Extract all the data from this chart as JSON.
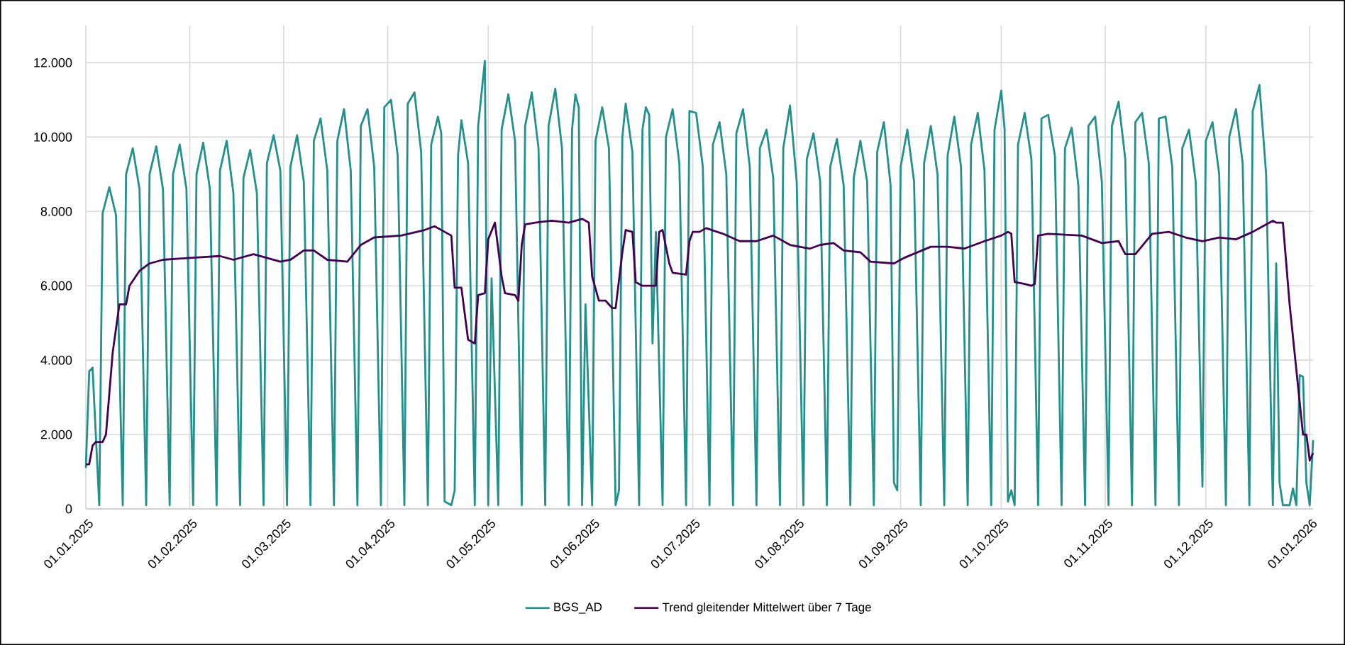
{
  "chart_data": {
    "type": "line",
    "xlim": [
      "2025-01-01",
      "2026-01-02"
    ],
    "xticks": [
      {
        "value": "2025-01-01",
        "label": "01.01.2025"
      },
      {
        "value": "2025-02-01",
        "label": "01.02.2025"
      },
      {
        "value": "2025-03-01",
        "label": "01.03.2025"
      },
      {
        "value": "2025-04-01",
        "label": "01.04.2025"
      },
      {
        "value": "2025-05-01",
        "label": "01.05.2025"
      },
      {
        "value": "2025-06-01",
        "label": "01.06.2025"
      },
      {
        "value": "2025-07-01",
        "label": "01.07.2025"
      },
      {
        "value": "2025-08-01",
        "label": "01.08.2025"
      },
      {
        "value": "2025-09-01",
        "label": "01.09.2025"
      },
      {
        "value": "2025-10-01",
        "label": "01.10.2025"
      },
      {
        "value": "2025-11-01",
        "label": "01.11.2025"
      },
      {
        "value": "2025-12-01",
        "label": "01.12.2025"
      },
      {
        "value": "2026-01-01",
        "label": "01.01.2026"
      }
    ],
    "ylim": [
      0,
      13000
    ],
    "yticks": [
      0,
      {
        "value": 2000,
        "label": "2.000"
      },
      {
        "value": 4000,
        "label": "4.000"
      },
      {
        "value": 6000,
        "label": "6.000"
      },
      {
        "value": 8000,
        "label": "8.000"
      },
      {
        "value": 10000,
        "label": "10.000"
      },
      {
        "value": 12000,
        "label": "12.000"
      }
    ],
    "grid": true,
    "legend": "bottom",
    "marker": "none",
    "line_style": "solid",
    "series": [
      {
        "name": "BGS_AD",
        "color": "#21918c",
        "x": [
          "2025-01-01",
          "2025-01-02",
          "2025-01-03",
          "2025-01-05",
          "2025-01-06",
          "2025-01-08",
          "2025-01-10",
          "2025-01-12",
          "2025-01-13",
          "2025-01-15",
          "2025-01-17",
          "2025-01-19",
          "2025-01-20",
          "2025-01-22",
          "2025-01-24",
          "2025-01-26",
          "2025-01-27",
          "2025-01-29",
          "2025-01-31",
          "2025-02-02",
          "2025-02-03",
          "2025-02-05",
          "2025-02-07",
          "2025-02-09",
          "2025-02-10",
          "2025-02-12",
          "2025-02-14",
          "2025-02-16",
          "2025-02-17",
          "2025-02-19",
          "2025-02-21",
          "2025-02-23",
          "2025-02-24",
          "2025-02-26",
          "2025-02-28",
          "2025-03-02",
          "2025-03-03",
          "2025-03-05",
          "2025-03-07",
          "2025-03-09",
          "2025-03-10",
          "2025-03-12",
          "2025-03-14",
          "2025-03-16",
          "2025-03-17",
          "2025-03-19",
          "2025-03-21",
          "2025-03-23",
          "2025-03-24",
          "2025-03-26",
          "2025-03-28",
          "2025-03-30",
          "2025-03-31",
          "2025-04-02",
          "2025-04-04",
          "2025-04-06",
          "2025-04-07",
          "2025-04-09",
          "2025-04-11",
          "2025-04-13",
          "2025-04-14",
          "2025-04-16",
          "2025-04-17",
          "2025-04-18",
          "2025-04-20",
          "2025-04-21",
          "2025-04-22",
          "2025-04-23",
          "2025-04-25",
          "2025-04-27",
          "2025-04-28",
          "2025-04-30",
          "2025-05-01",
          "2025-05-02",
          "2025-05-04",
          "2025-05-05",
          "2025-05-07",
          "2025-05-09",
          "2025-05-11",
          "2025-05-12",
          "2025-05-14",
          "2025-05-16",
          "2025-05-18",
          "2025-05-19",
          "2025-05-21",
          "2025-05-23",
          "2025-05-25",
          "2025-05-26",
          "2025-05-27",
          "2025-05-28",
          "2025-05-29",
          "2025-05-30",
          "2025-06-01",
          "2025-06-02",
          "2025-06-04",
          "2025-06-06",
          "2025-06-08",
          "2025-06-09",
          "2025-06-10",
          "2025-06-11",
          "2025-06-13",
          "2025-06-15",
          "2025-06-16",
          "2025-06-17",
          "2025-06-18",
          "2025-06-19",
          "2025-06-20",
          "2025-06-22",
          "2025-06-23",
          "2025-06-25",
          "2025-06-27",
          "2025-06-29",
          "2025-06-30",
          "2025-07-02",
          "2025-07-04",
          "2025-07-06",
          "2025-07-07",
          "2025-07-09",
          "2025-07-11",
          "2025-07-13",
          "2025-07-14",
          "2025-07-16",
          "2025-07-18",
          "2025-07-20",
          "2025-07-21",
          "2025-07-23",
          "2025-07-25",
          "2025-07-27",
          "2025-07-28",
          "2025-07-30",
          "2025-08-01",
          "2025-08-03",
          "2025-08-04",
          "2025-08-06",
          "2025-08-08",
          "2025-08-10",
          "2025-08-11",
          "2025-08-13",
          "2025-08-15",
          "2025-08-17",
          "2025-08-18",
          "2025-08-20",
          "2025-08-22",
          "2025-08-24",
          "2025-08-25",
          "2025-08-27",
          "2025-08-29",
          "2025-08-30",
          "2025-08-31",
          "2025-09-01",
          "2025-09-03",
          "2025-09-05",
          "2025-09-07",
          "2025-09-08",
          "2025-09-10",
          "2025-09-12",
          "2025-09-14",
          "2025-09-15",
          "2025-09-17",
          "2025-09-19",
          "2025-09-21",
          "2025-09-22",
          "2025-09-24",
          "2025-09-26",
          "2025-09-28",
          "2025-09-29",
          "2025-10-01",
          "2025-10-02",
          "2025-10-03",
          "2025-10-04",
          "2025-10-05",
          "2025-10-06",
          "2025-10-08",
          "2025-10-10",
          "2025-10-12",
          "2025-10-13",
          "2025-10-15",
          "2025-10-17",
          "2025-10-19",
          "2025-10-20",
          "2025-10-22",
          "2025-10-24",
          "2025-10-26",
          "2025-10-27",
          "2025-10-29",
          "2025-10-31",
          "2025-11-02",
          "2025-11-03",
          "2025-11-05",
          "2025-11-07",
          "2025-11-09",
          "2025-11-10",
          "2025-11-12",
          "2025-11-14",
          "2025-11-16",
          "2025-11-17",
          "2025-11-19",
          "2025-11-21",
          "2025-11-23",
          "2025-11-24",
          "2025-11-26",
          "2025-11-28",
          "2025-11-30",
          "2025-12-01",
          "2025-12-03",
          "2025-12-05",
          "2025-12-07",
          "2025-12-08",
          "2025-12-10",
          "2025-12-12",
          "2025-12-14",
          "2025-12-15",
          "2025-12-17",
          "2025-12-19",
          "2025-12-21",
          "2025-12-22",
          "2025-12-23",
          "2025-12-24",
          "2025-12-26",
          "2025-12-27",
          "2025-12-28",
          "2025-12-29",
          "2025-12-30",
          "2025-12-31",
          "2026-01-01",
          "2026-01-02"
        ],
        "values": [
          1100,
          3700,
          3800,
          100,
          7950,
          8650,
          7900,
          100,
          9000,
          9700,
          8600,
          100,
          9000,
          9750,
          8600,
          100,
          9000,
          9800,
          8600,
          100,
          9000,
          9850,
          8600,
          100,
          9100,
          9900,
          8500,
          100,
          8900,
          9650,
          8500,
          100,
          9300,
          10050,
          9100,
          100,
          9200,
          10050,
          8800,
          100,
          9900,
          10500,
          9100,
          100,
          9900,
          10750,
          9100,
          100,
          10300,
          10750,
          9200,
          100,
          10800,
          11000,
          9500,
          100,
          10900,
          11200,
          9600,
          100,
          9800,
          10550,
          10100,
          200,
          100,
          500,
          9500,
          10450,
          9300,
          100,
          10300,
          12050,
          100,
          6200,
          100,
          10200,
          11150,
          9900,
          100,
          10300,
          11200,
          9700,
          100,
          10300,
          11300,
          9700,
          100,
          10200,
          11150,
          10800,
          100,
          5500,
          100,
          9900,
          10800,
          9700,
          100,
          500,
          10000,
          10900,
          9600,
          100,
          10200,
          10800,
          10600,
          4450,
          7450,
          100,
          10000,
          10750,
          9300,
          100,
          10700,
          10650,
          9200,
          100,
          9800,
          10400,
          9000,
          100,
          10100,
          10750,
          9200,
          100,
          9700,
          10200,
          8900,
          100,
          9700,
          10850,
          8800,
          100,
          9400,
          10100,
          8800,
          100,
          9200,
          9950,
          8700,
          100,
          8900,
          9900,
          8800,
          100,
          9600,
          10400,
          8700,
          700,
          500,
          9200,
          10200,
          8800,
          100,
          9300,
          10300,
          9000,
          100,
          9500,
          10550,
          9200,
          100,
          9800,
          10650,
          9100,
          100,
          10200,
          11250,
          10200,
          200,
          500,
          100,
          9800,
          10650,
          9400,
          100,
          10500,
          10600,
          9500,
          100,
          9700,
          10250,
          8700,
          100,
          10300,
          10550,
          8800,
          100,
          10300,
          10950,
          9400,
          100,
          10400,
          10650,
          9300,
          100,
          10500,
          10550,
          9200,
          100,
          9700,
          10200,
          8800,
          600,
          9900,
          10400,
          9000,
          100,
          10000,
          10750,
          9300,
          100,
          10700,
          11400,
          9000,
          100,
          6600,
          700,
          100,
          100,
          550,
          100,
          3600,
          3550,
          700,
          100,
          1850
        ]
      },
      {
        "name": "Trend gleitender Mittelwert über 7 Tage",
        "color": "#440154",
        "x": [
          "2025-01-01",
          "2025-01-02",
          "2025-01-03",
          "2025-01-04",
          "2025-01-06",
          "2025-01-07",
          "2025-01-09",
          "2025-01-11",
          "2025-01-13",
          "2025-01-14",
          "2025-01-17",
          "2025-01-20",
          "2025-01-24",
          "2025-02-01",
          "2025-02-10",
          "2025-02-14",
          "2025-02-20",
          "2025-02-28",
          "2025-03-03",
          "2025-03-07",
          "2025-03-10",
          "2025-03-14",
          "2025-03-20",
          "2025-03-24",
          "2025-03-28",
          "2025-04-05",
          "2025-04-12",
          "2025-04-15",
          "2025-04-18",
          "2025-04-20",
          "2025-04-21",
          "2025-04-23",
          "2025-04-25",
          "2025-04-27",
          "2025-04-28",
          "2025-04-30",
          "2025-05-01",
          "2025-05-03",
          "2025-05-05",
          "2025-05-06",
          "2025-05-09",
          "2025-05-10",
          "2025-05-11",
          "2025-05-12",
          "2025-05-15",
          "2025-05-20",
          "2025-05-25",
          "2025-05-29",
          "2025-05-31",
          "2025-06-01",
          "2025-06-03",
          "2025-06-05",
          "2025-06-07",
          "2025-06-08",
          "2025-06-10",
          "2025-06-11",
          "2025-06-13",
          "2025-06-14",
          "2025-06-16",
          "2025-06-20",
          "2025-06-21",
          "2025-06-22",
          "2025-06-24",
          "2025-06-25",
          "2025-06-29",
          "2025-06-30",
          "2025-07-01",
          "2025-07-03",
          "2025-07-05",
          "2025-07-10",
          "2025-07-15",
          "2025-07-20",
          "2025-07-25",
          "2025-07-30",
          "2025-08-05",
          "2025-08-08",
          "2025-08-12",
          "2025-08-15",
          "2025-08-20",
          "2025-08-23",
          "2025-08-30",
          "2025-09-02",
          "2025-09-10",
          "2025-09-15",
          "2025-09-20",
          "2025-09-26",
          "2025-10-01",
          "2025-10-03",
          "2025-10-04",
          "2025-10-05",
          "2025-10-08",
          "2025-10-10",
          "2025-10-11",
          "2025-10-12",
          "2025-10-15",
          "2025-10-25",
          "2025-10-31",
          "2025-11-05",
          "2025-11-07",
          "2025-11-10",
          "2025-11-15",
          "2025-11-20",
          "2025-11-25",
          "2025-11-30",
          "2025-12-05",
          "2025-12-10",
          "2025-12-15",
          "2025-12-18",
          "2025-12-21",
          "2025-12-22",
          "2025-12-24",
          "2025-12-26",
          "2025-12-30",
          "2025-12-31",
          "2026-01-01",
          "2026-01-02"
        ],
        "values": [
          1200,
          1200,
          1700,
          1800,
          1800,
          2000,
          4200,
          5500,
          5500,
          6000,
          6400,
          6600,
          6700,
          6750,
          6800,
          6700,
          6850,
          6650,
          6700,
          6950,
          6950,
          6700,
          6650,
          7100,
          7300,
          7350,
          7500,
          7600,
          7450,
          7350,
          5950,
          5950,
          4550,
          4450,
          5750,
          5800,
          7250,
          7700,
          6250,
          5800,
          5750,
          5600,
          7100,
          7650,
          7700,
          7750,
          7700,
          7800,
          7700,
          6250,
          5600,
          5600,
          5400,
          5400,
          6900,
          7500,
          7450,
          6100,
          6000,
          6000,
          7450,
          7500,
          6600,
          6350,
          6300,
          7200,
          7450,
          7450,
          7550,
          7400,
          7200,
          7200,
          7350,
          7100,
          7000,
          7100,
          7150,
          6950,
          6900,
          6650,
          6600,
          6750,
          7050,
          7050,
          7000,
          7200,
          7350,
          7450,
          7400,
          6100,
          6050,
          6000,
          6050,
          7350,
          7400,
          7350,
          7150,
          7200,
          6850,
          6850,
          7400,
          7450,
          7300,
          7200,
          7300,
          7250,
          7450,
          7600,
          7750,
          7700,
          7700,
          5500,
          2000,
          2000,
          1300,
          1500
        ]
      }
    ]
  }
}
